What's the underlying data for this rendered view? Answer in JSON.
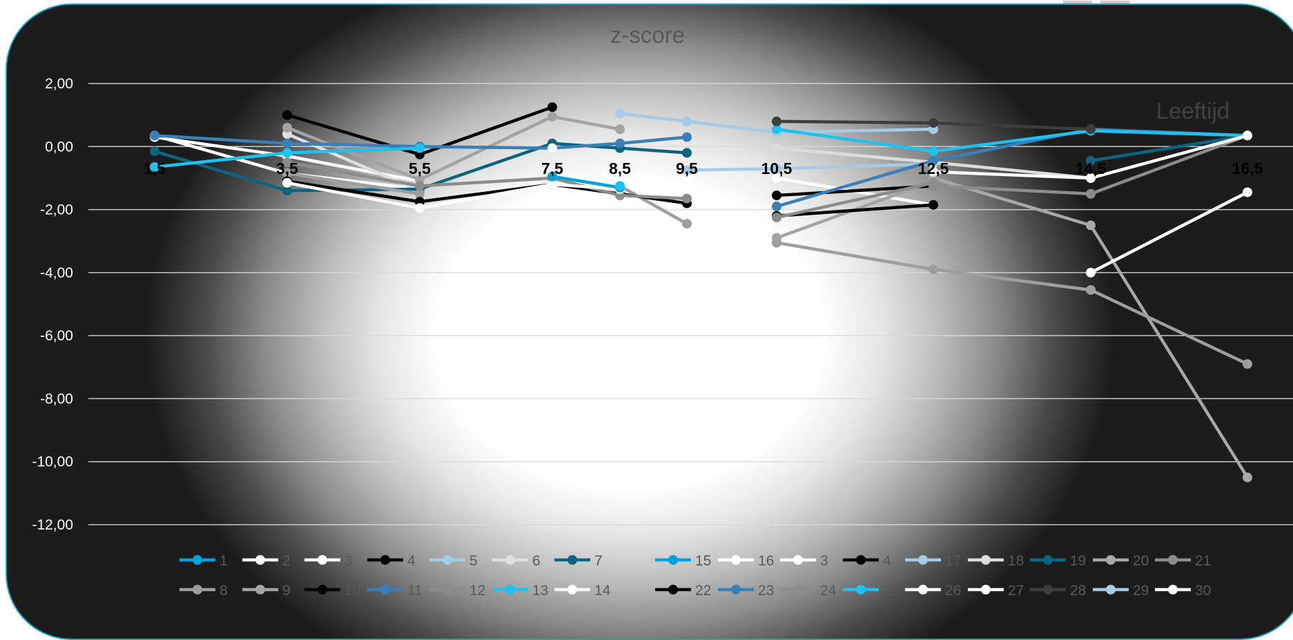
{
  "chart_data": {
    "type": "line",
    "title": "z-score",
    "xlabel": "Leeftijd",
    "ylabel": "",
    "ylim": [
      -12,
      2
    ],
    "y_ticks": [
      "2,00",
      "0,00",
      "-2,00",
      "-4,00",
      "-6,00",
      "-8,00",
      "-10,00",
      "-12,00"
    ],
    "y_tick_values": [
      2,
      0,
      -2,
      -4,
      -6,
      -8,
      -10,
      -12
    ],
    "categories": [
      "1,5",
      "3,5",
      "5,5",
      "7,5",
      "8,5",
      "9,5",
      "10,5",
      "12,5",
      "14,5",
      "16,5"
    ],
    "x_tick_axis_value": -0.7,
    "grid": true,
    "legend_position": "bottom",
    "series": [
      {
        "name": "1",
        "color": "#00a3d9",
        "values": [
          -0.65,
          null,
          null,
          null,
          null,
          null,
          null,
          null,
          null,
          null
        ]
      },
      {
        "name": "2",
        "color": "#ffffff",
        "values": [
          0.35,
          -0.85,
          -1.35,
          null,
          null,
          null,
          null,
          null,
          null,
          null
        ]
      },
      {
        "name": "3",
        "color": "#ffffff",
        "values": [
          0.3,
          -0.3,
          -1.1,
          null,
          null,
          null,
          null,
          null,
          null,
          null
        ]
      },
      {
        "name": "4",
        "color": "#000000",
        "values": [
          null,
          1.0,
          -0.25,
          1.25,
          null,
          null,
          null,
          null,
          null,
          null
        ]
      },
      {
        "name": "5",
        "color": "#a6cbe6",
        "values": [
          null,
          null,
          null,
          null,
          1.05,
          0.8,
          0.45,
          0.55,
          null,
          null
        ]
      },
      {
        "name": "6",
        "color": "#e0e0e0",
        "values": [
          null,
          0.4,
          -1.4,
          null,
          null,
          null,
          null,
          null,
          null,
          null
        ]
      },
      {
        "name": "7",
        "color": "#0d6480",
        "values": [
          -0.15,
          -1.4,
          -1.35,
          0.1,
          -0.05,
          -0.2,
          null,
          null,
          null,
          null
        ]
      },
      {
        "name": "8",
        "color": "#9e9e9e",
        "values": [
          null,
          -0.85,
          -1.5,
          null,
          -1.25,
          -2.45,
          null,
          null,
          null,
          null
        ]
      },
      {
        "name": "9",
        "color": "#a3a3a3",
        "values": [
          null,
          0.6,
          -1.05,
          0.95,
          0.55,
          null,
          null,
          null,
          null,
          null
        ]
      },
      {
        "name": "10",
        "color": "#000000",
        "values": [
          null,
          -1.1,
          -1.75,
          -1.2,
          -1.5,
          -1.8,
          null,
          null,
          null,
          null
        ]
      },
      {
        "name": "11",
        "color": "#3a7fb8",
        "values": [
          0.35,
          0.1,
          0.0,
          -0.05,
          0.1,
          0.3,
          null,
          null,
          null,
          null
        ]
      },
      {
        "name": "12",
        "color": "#8c8c8c",
        "values": [
          null,
          -0.5,
          -1.25,
          -1.0,
          -1.55,
          -1.65,
          null,
          null,
          null,
          null
        ]
      },
      {
        "name": "13",
        "color": "#1ec1f0",
        "values": [
          -0.65,
          -0.2,
          -0.05,
          null,
          null,
          null,
          null,
          null,
          null,
          null
        ]
      },
      {
        "name": "14",
        "color": "#ffffff",
        "values": [
          null,
          -1.15,
          -1.95,
          -1.2,
          -1.35,
          null,
          null,
          null,
          null,
          null
        ]
      },
      {
        "name": "15",
        "color": "#00a3d9",
        "values": [
          null,
          null,
          null,
          -0.95,
          -1.3,
          null,
          null,
          null,
          null,
          null
        ]
      },
      {
        "name": "16",
        "color": "#ffffff",
        "values": [
          null,
          null,
          null,
          -0.05,
          null,
          -1.0,
          null,
          null,
          null,
          null
        ]
      },
      {
        "name": "3",
        "color": "#ffffff",
        "values": [
          null,
          null,
          null,
          null,
          null,
          null,
          -1.0,
          -1.85,
          null,
          null
        ]
      },
      {
        "name": "4",
        "color": "#000000",
        "values": [
          null,
          null,
          null,
          null,
          null,
          null,
          -1.55,
          -1.25,
          null,
          null
        ]
      },
      {
        "name": "17",
        "color": "#a6cbe6",
        "values": [
          null,
          null,
          null,
          null,
          null,
          -0.75,
          -0.7,
          -0.55,
          null,
          null
        ]
      },
      {
        "name": "18",
        "color": "#dcdcdc",
        "values": [
          null,
          null,
          null,
          null,
          null,
          null,
          -0.05,
          -0.5,
          -1.0,
          null
        ]
      },
      {
        "name": "19",
        "color": "#0d6480",
        "values": [
          null,
          null,
          null,
          null,
          null,
          null,
          null,
          null,
          -0.45,
          0.35
        ]
      },
      {
        "name": "20",
        "color": "#a8a8a8",
        "values": [
          null,
          null,
          null,
          null,
          null,
          null,
          null,
          -1.0,
          -2.5,
          -10.5
        ]
      },
      {
        "name": "21",
        "color": "#8c8c8c",
        "values": [
          null,
          null,
          null,
          null,
          null,
          null,
          null,
          -1.25,
          -1.5,
          0.35
        ]
      },
      {
        "name": "8",
        "color": "#9e9e9e",
        "values": [
          null,
          null,
          null,
          null,
          null,
          null,
          -3.05,
          -3.9,
          -4.55,
          -6.9
        ]
      },
      {
        "name": "9",
        "color": "#a3a3a3",
        "values": [
          null,
          null,
          null,
          null,
          null,
          null,
          -2.9,
          -1.1,
          null,
          null
        ]
      },
      {
        "name": "22",
        "color": "#000000",
        "values": [
          null,
          null,
          null,
          null,
          null,
          null,
          -2.2,
          -1.85,
          null,
          null
        ]
      },
      {
        "name": "23",
        "color": "#3a7fb8",
        "values": [
          null,
          null,
          null,
          null,
          null,
          null,
          -1.9,
          -0.45,
          0.55,
          0.35
        ]
      },
      {
        "name": "24",
        "color": "#8c8c8c",
        "values": [
          null,
          null,
          null,
          null,
          null,
          null,
          -2.25,
          -1.15,
          null,
          null
        ]
      },
      {
        "name": "25",
        "color": "#1ec1f0",
        "values": [
          null,
          null,
          null,
          null,
          -1.25,
          null,
          0.55,
          -0.15,
          0.5,
          0.35
        ]
      },
      {
        "name": "26",
        "color": "#ffffff",
        "values": [
          null,
          null,
          null,
          null,
          null,
          null,
          null,
          -0.8,
          -1.0,
          0.35
        ]
      },
      {
        "name": "27",
        "color": "#ffffff",
        "values": [
          null,
          null,
          null,
          null,
          null,
          null,
          null,
          null,
          -4.0,
          -1.45
        ]
      },
      {
        "name": "28",
        "color": "#3d3d3d",
        "values": [
          null,
          null,
          null,
          null,
          null,
          null,
          0.8,
          0.75,
          0.55,
          null
        ]
      },
      {
        "name": "29",
        "color": "#a6cbe6",
        "values": [
          null,
          null,
          null,
          null,
          null,
          null,
          null,
          null,
          null,
          null
        ]
      },
      {
        "name": "30",
        "color": "#ffffff",
        "values": [
          null,
          null,
          null,
          null,
          null,
          null,
          null,
          null,
          null,
          null
        ]
      }
    ]
  },
  "legend": {
    "rows": [
      [
        {
          "label": "1",
          "color": "#00a3d9"
        },
        {
          "label": "2",
          "color": "#ffffff"
        },
        {
          "label": "3",
          "color": "#ffffff"
        },
        {
          "label": "4",
          "color": "#000000"
        },
        {
          "label": "5",
          "color": "#a6cbe6"
        },
        {
          "label": "6",
          "color": "#e0e0e0"
        },
        {
          "label": "7",
          "color": "#0d6480"
        },
        {
          "label": "15",
          "color": "#00a3d9"
        },
        {
          "label": "16",
          "color": "#ffffff"
        },
        {
          "label": "3",
          "color": "#ffffff"
        },
        {
          "label": "4",
          "color": "#000000"
        },
        {
          "label": "17",
          "color": "#a6cbe6"
        },
        {
          "label": "18",
          "color": "#dcdcdc"
        },
        {
          "label": "19",
          "color": "#0d6480"
        },
        {
          "label": "20",
          "color": "#a8a8a8"
        },
        {
          "label": "21",
          "color": "#8c8c8c"
        }
      ],
      [
        {
          "label": "8",
          "color": "#9e9e9e"
        },
        {
          "label": "9",
          "color": "#a3a3a3"
        },
        {
          "label": "10",
          "color": "#000000"
        },
        {
          "label": "11",
          "color": "#3a7fb8"
        },
        {
          "label": "12",
          "color": "#8c8c8c"
        },
        {
          "label": "13",
          "color": "#1ec1f0"
        },
        {
          "label": "14",
          "color": "#ffffff"
        },
        {
          "label": "22",
          "color": "#000000"
        },
        {
          "label": "23",
          "color": "#3a7fb8"
        },
        {
          "label": "24",
          "color": "#8c8c8c"
        },
        {
          "label": "25",
          "color": "#1ec1f0"
        },
        {
          "label": "26",
          "color": "#ffffff"
        },
        {
          "label": "27",
          "color": "#ffffff"
        },
        {
          "label": "28",
          "color": "#3d3d3d"
        },
        {
          "label": "29",
          "color": "#a6cbe6"
        },
        {
          "label": "30",
          "color": "#ffffff"
        }
      ]
    ]
  }
}
